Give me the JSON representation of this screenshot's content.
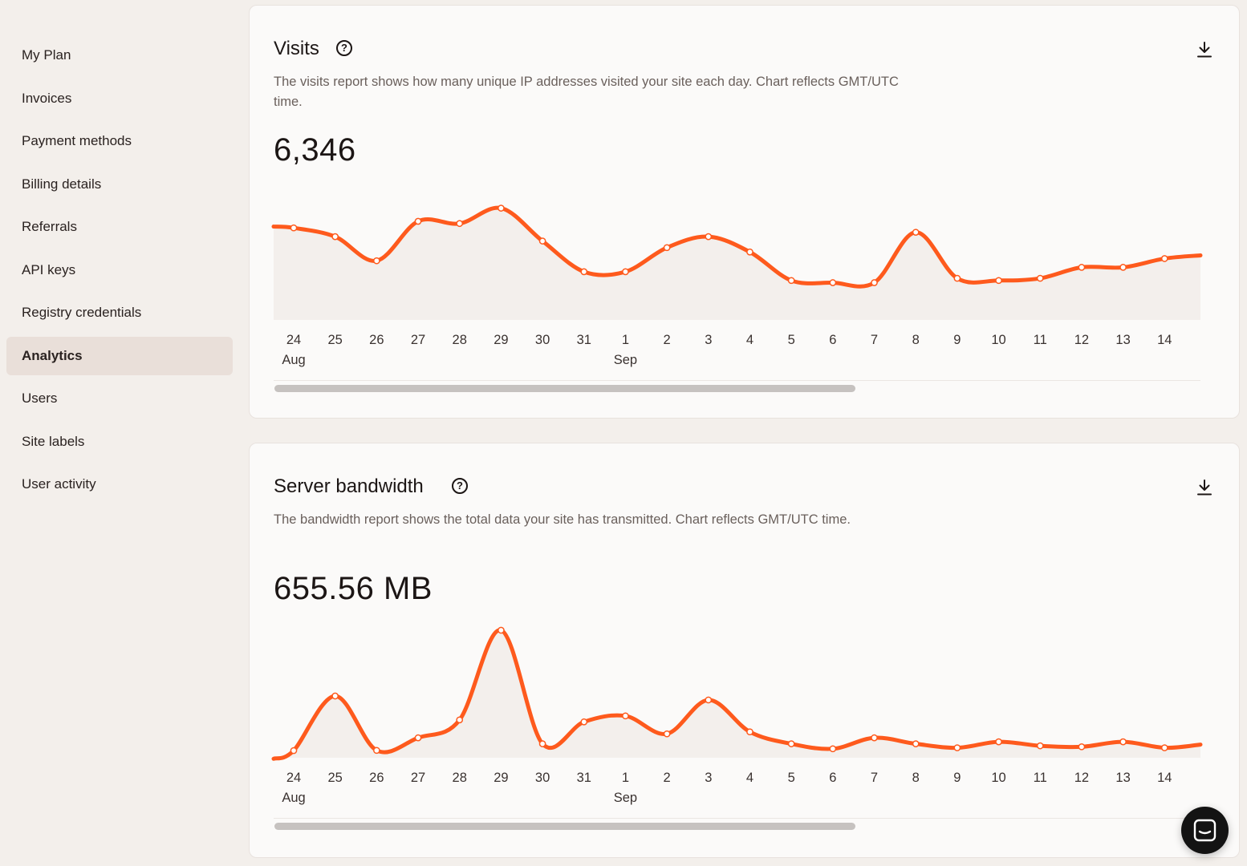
{
  "sidebar": {
    "items": [
      {
        "label": "My Plan",
        "active": false
      },
      {
        "label": "Invoices",
        "active": false
      },
      {
        "label": "Payment methods",
        "active": false
      },
      {
        "label": "Billing details",
        "active": false
      },
      {
        "label": "Referrals",
        "active": false
      },
      {
        "label": "API keys",
        "active": false
      },
      {
        "label": "Registry credentials",
        "active": false
      },
      {
        "label": "Analytics",
        "active": true
      },
      {
        "label": "Users",
        "active": false
      },
      {
        "label": "Site labels",
        "active": false
      },
      {
        "label": "User activity",
        "active": false
      }
    ]
  },
  "visits": {
    "title": "Visits",
    "description": "The visits report shows how many unique IP addresses visited your site each day. Chart reflects GMT/UTC time.",
    "total": "6,346"
  },
  "bandwidth": {
    "title": "Server bandwidth",
    "description": "The bandwidth report shows the total data your site has transmitted. Chart reflects GMT/UTC time.",
    "total": "655.56 MB"
  },
  "colors": {
    "accent": "#fe5a1d",
    "area_fill": "#f3efec",
    "background": "#f3efeb"
  },
  "icons": {
    "help": "question-circle-icon",
    "download": "download-icon",
    "chat": "chat-icon"
  },
  "chart_data": [
    {
      "type": "area",
      "x": [
        "24",
        "25",
        "26",
        "27",
        "28",
        "29",
        "30",
        "31",
        "1",
        "2",
        "3",
        "4",
        "5",
        "6",
        "7",
        "8",
        "9",
        "10",
        "11",
        "12",
        "13",
        "14"
      ],
      "month_labels": [
        {
          "index": 0,
          "label": "Aug"
        },
        {
          "index": 8,
          "label": "Sep"
        }
      ],
      "series": [
        {
          "values": [
            282,
            278,
            267,
            285,
            284,
            291,
            276,
            262,
            262,
            273,
            278,
            271,
            258,
            257,
            257,
            280,
            259,
            258,
            259,
            264,
            264,
            268
          ]
        }
      ]
    },
    {
      "type": "area",
      "x": [
        "24",
        "25",
        "26",
        "27",
        "28",
        "29",
        "30",
        "31",
        "1",
        "2",
        "3",
        "4",
        "5",
        "6",
        "7",
        "8",
        "9",
        "10",
        "11",
        "12",
        "13",
        "14"
      ],
      "month_labels": [
        {
          "index": 0,
          "label": "Aug"
        },
        {
          "index": 8,
          "label": "Sep"
        }
      ],
      "series": [
        {
          "values": [
            3.6,
            31,
            3.7,
            10,
            19,
            64,
            7,
            18,
            21,
            12,
            29,
            13,
            7,
            4.5,
            10,
            7,
            5,
            8,
            6,
            5.5,
            8,
            5
          ]
        }
      ]
    }
  ]
}
